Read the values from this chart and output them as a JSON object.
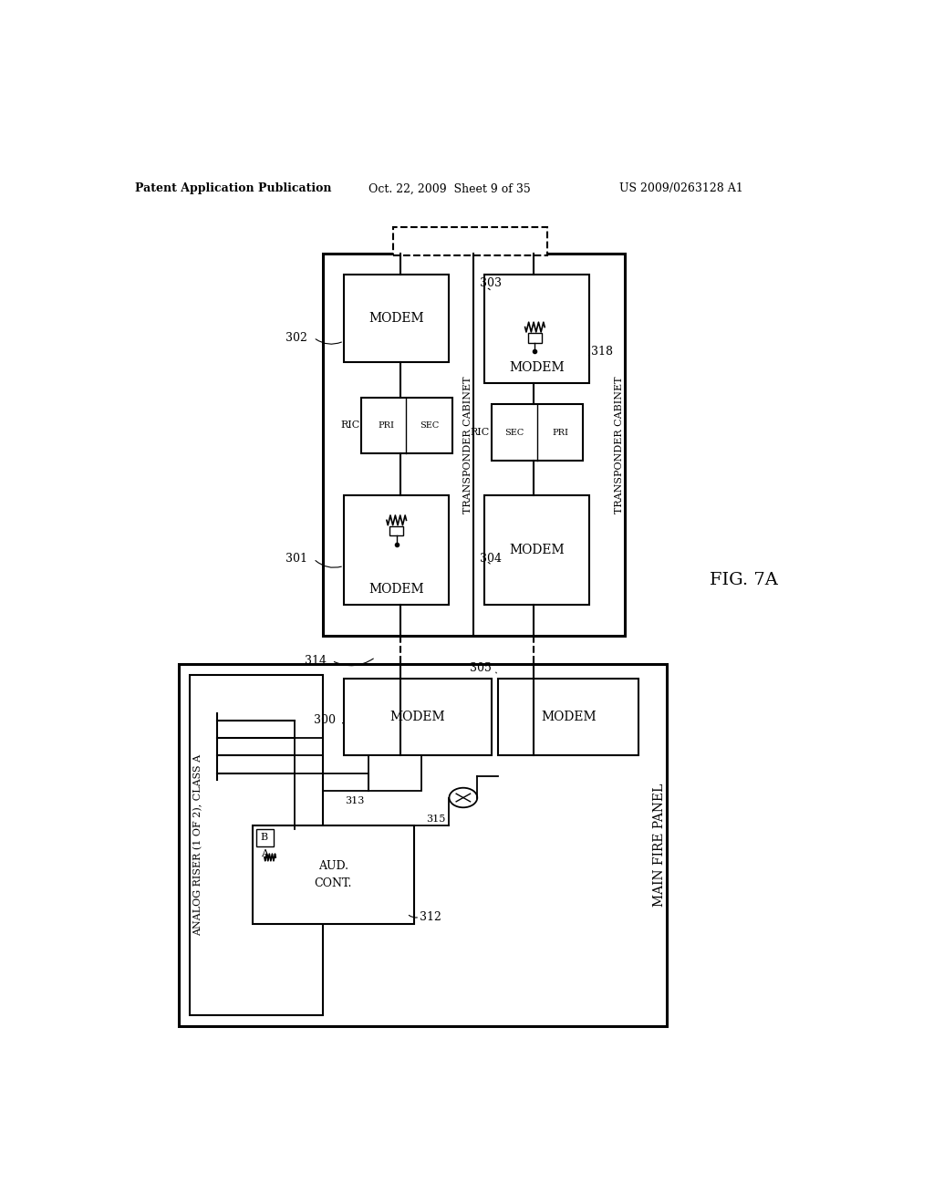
{
  "bg_color": "#ffffff",
  "header_left": "Patent Application Publication",
  "header_center": "Oct. 22, 2009  Sheet 9 of 35",
  "header_right": "US 2009/0263128 A1",
  "fig_label": "FIG. 7A"
}
